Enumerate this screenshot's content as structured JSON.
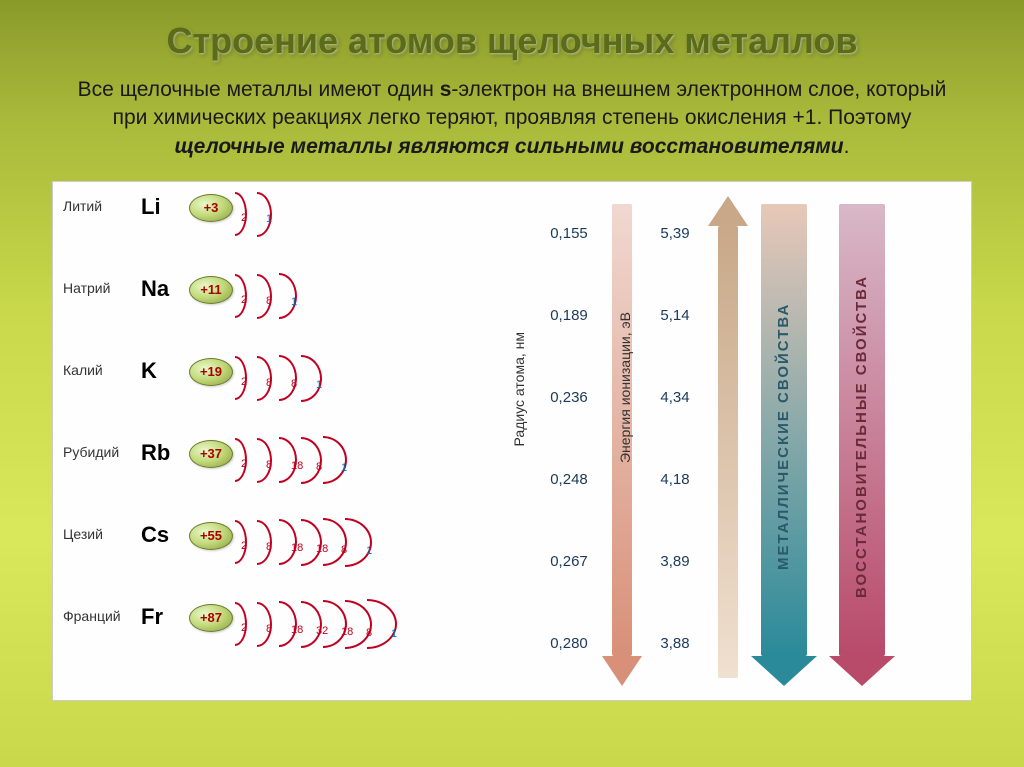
{
  "title": "Строение атомов щелочных металлов",
  "subtitle_parts": {
    "p1": "Все щелочные металлы имеют один ",
    "p2": "s",
    "p3": "-электрон на внешнем электронном слое, который при химических реакциях легко теряют, проявляя степень окисления +1. Поэтому ",
    "p4": "щелочные металлы являются сильными восстановителями",
    "p5": "."
  },
  "elements": [
    {
      "name": "Литий",
      "symbol": "Li",
      "charge": "+3",
      "shells": [
        2,
        1
      ],
      "radius": "0,155",
      "ionization": "5,39"
    },
    {
      "name": "Натрий",
      "symbol": "Na",
      "charge": "+11",
      "shells": [
        2,
        8,
        1
      ],
      "radius": "0,189",
      "ionization": "5,14"
    },
    {
      "name": "Калий",
      "symbol": "K",
      "charge": "+19",
      "shells": [
        2,
        8,
        8,
        1
      ],
      "radius": "0,236",
      "ionization": "4,34"
    },
    {
      "name": "Рубидий",
      "symbol": "Rb",
      "charge": "+37",
      "shells": [
        2,
        8,
        18,
        8,
        1
      ],
      "radius": "0,248",
      "ionization": "4,18"
    },
    {
      "name": "Цезий",
      "symbol": "Cs",
      "charge": "+55",
      "shells": [
        2,
        8,
        18,
        18,
        8,
        1
      ],
      "radius": "0,267",
      "ionization": "3,89"
    },
    {
      "name": "Франций",
      "symbol": "Fr",
      "charge": "+87",
      "shells": [
        2,
        8,
        18,
        32,
        18,
        8,
        1
      ],
      "radius": "0,280",
      "ionization": "3,88"
    }
  ],
  "column_labels": {
    "radius": "Радиус атома, нм",
    "ionization": "Энергия ионизации, эВ"
  },
  "arrows": [
    {
      "label": "МЕТАЛЛИЧЕСКИЕ СВОЙСТВА",
      "direction": "down",
      "gradient_top": "#e8c8b8",
      "gradient_bottom": "#2a8a9a",
      "text_color": "#2a5a6a"
    },
    {
      "label": "ВОССТАНОВИТЕЛЬНЫЕ СВОЙСТВА",
      "direction": "down",
      "gradient_top": "#d8b8c8",
      "gradient_bottom": "#b84a6a",
      "text_color": "#6a2a3a"
    }
  ],
  "radius_arrow": {
    "direction": "down",
    "gradient_top": "#f0d8d0",
    "gradient_bottom": "#d89078"
  },
  "ionization_arrow": {
    "direction": "up",
    "gradient_top": "#c8a888",
    "gradient_bottom": "#f0e0d0"
  },
  "styling": {
    "shell_arc_color": "#c00020",
    "shell_num_color": "#c00020",
    "outer_shell_num_color": "#0070c0",
    "nucleus_text_color": "#aa0000",
    "shell_base_width": 12,
    "shell_gap": 22,
    "shell_height": 44
  }
}
